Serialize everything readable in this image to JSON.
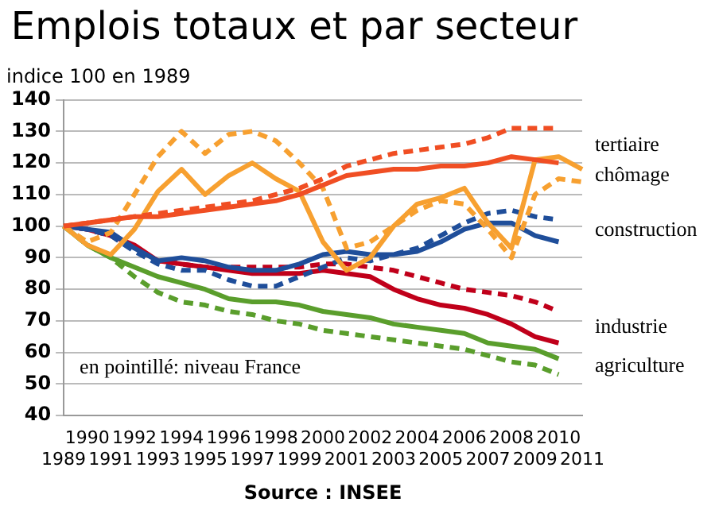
{
  "chart_data": {
    "type": "line",
    "title": "Emplois totaux et par secteur",
    "ylabel": "indice 100 en 1989",
    "categories": [
      "1989",
      "1990",
      "1991",
      "1992",
      "1993",
      "1994",
      "1995",
      "1996",
      "1997",
      "1998",
      "1999",
      "2000",
      "2001",
      "2002",
      "2003",
      "2004",
      "2005",
      "2006",
      "2007",
      "2008",
      "2009",
      "2010",
      "2011"
    ],
    "series": [
      {
        "name": "tertiaire",
        "color": "#f04e23",
        "line_style": "solid",
        "values": [
          100,
          101,
          102,
          103,
          103,
          104,
          105,
          106,
          107,
          108,
          110,
          113,
          116,
          117,
          118,
          118,
          119,
          119,
          120,
          122,
          121,
          120,
          null
        ]
      },
      {
        "color": "#f04e23",
        "line_style": "dashed",
        "values": [
          100,
          101,
          102,
          103,
          104,
          105,
          106,
          107,
          108,
          110,
          112,
          115,
          119,
          121,
          123,
          124,
          125,
          126,
          128,
          131,
          131,
          131,
          null
        ]
      },
      {
        "name": "chômage",
        "color": "#f7a030",
        "line_style": "solid",
        "values": [
          100,
          94,
          91,
          99,
          111,
          118,
          110,
          116,
          120,
          115,
          111,
          95,
          86,
          90,
          100,
          107,
          109,
          112,
          101,
          93,
          121,
          122,
          118
        ]
      },
      {
        "color": "#f7a030",
        "line_style": "dashed",
        "values": [
          100,
          95,
          98,
          110,
          122,
          130,
          123,
          129,
          130,
          127,
          120,
          112,
          93,
          95,
          100,
          105,
          108,
          107,
          99,
          90,
          110,
          115,
          114
        ]
      },
      {
        "name": "construction",
        "color": "#1f4e9a",
        "line_style": "solid",
        "values": [
          100,
          99,
          98,
          93,
          89,
          90,
          89,
          87,
          86,
          86,
          88,
          91,
          92,
          91,
          91,
          92,
          95,
          99,
          101,
          101,
          97,
          95,
          null
        ]
      },
      {
        "color": "#1f4e9a",
        "line_style": "dashed",
        "values": [
          100,
          99,
          97,
          92,
          88,
          86,
          86,
          83,
          81,
          81,
          84,
          87,
          90,
          89,
          91,
          93,
          97,
          101,
          104,
          105,
          103,
          102,
          null
        ]
      },
      {
        "name": "industrie",
        "color": "#c0001a",
        "line_style": "solid",
        "values": [
          100,
          99,
          97,
          94,
          89,
          88,
          87,
          86,
          85,
          85,
          85,
          86,
          85,
          84,
          80,
          77,
          75,
          74,
          72,
          69,
          65,
          63,
          null
        ]
      },
      {
        "color": "#c0001a",
        "line_style": "dashed",
        "values": [
          100,
          99,
          97,
          93,
          89,
          88,
          87,
          87,
          87,
          87,
          87,
          88,
          88,
          87,
          86,
          84,
          82,
          80,
          79,
          78,
          76,
          73,
          null
        ]
      },
      {
        "name": "agriculture",
        "color": "#5a9e2c",
        "line_style": "solid",
        "values": [
          100,
          94,
          90,
          87,
          84,
          82,
          80,
          77,
          76,
          76,
          75,
          73,
          72,
          71,
          69,
          68,
          67,
          66,
          63,
          62,
          61,
          58,
          null
        ]
      },
      {
        "color": "#5a9e2c",
        "line_style": "dashed",
        "values": [
          100,
          94,
          90,
          84,
          79,
          76,
          75,
          73,
          72,
          70,
          69,
          67,
          66,
          65,
          64,
          63,
          62,
          61,
          59,
          57,
          56,
          53,
          null
        ]
      }
    ],
    "ylim": [
      40,
      140
    ],
    "yticks": [
      40,
      50,
      60,
      70,
      80,
      90,
      100,
      110,
      120,
      130,
      140
    ],
    "grid": "y",
    "legend": false,
    "marker": "none",
    "annotations": [
      "en pointillé: niveau France",
      "Source : INSEE"
    ]
  }
}
